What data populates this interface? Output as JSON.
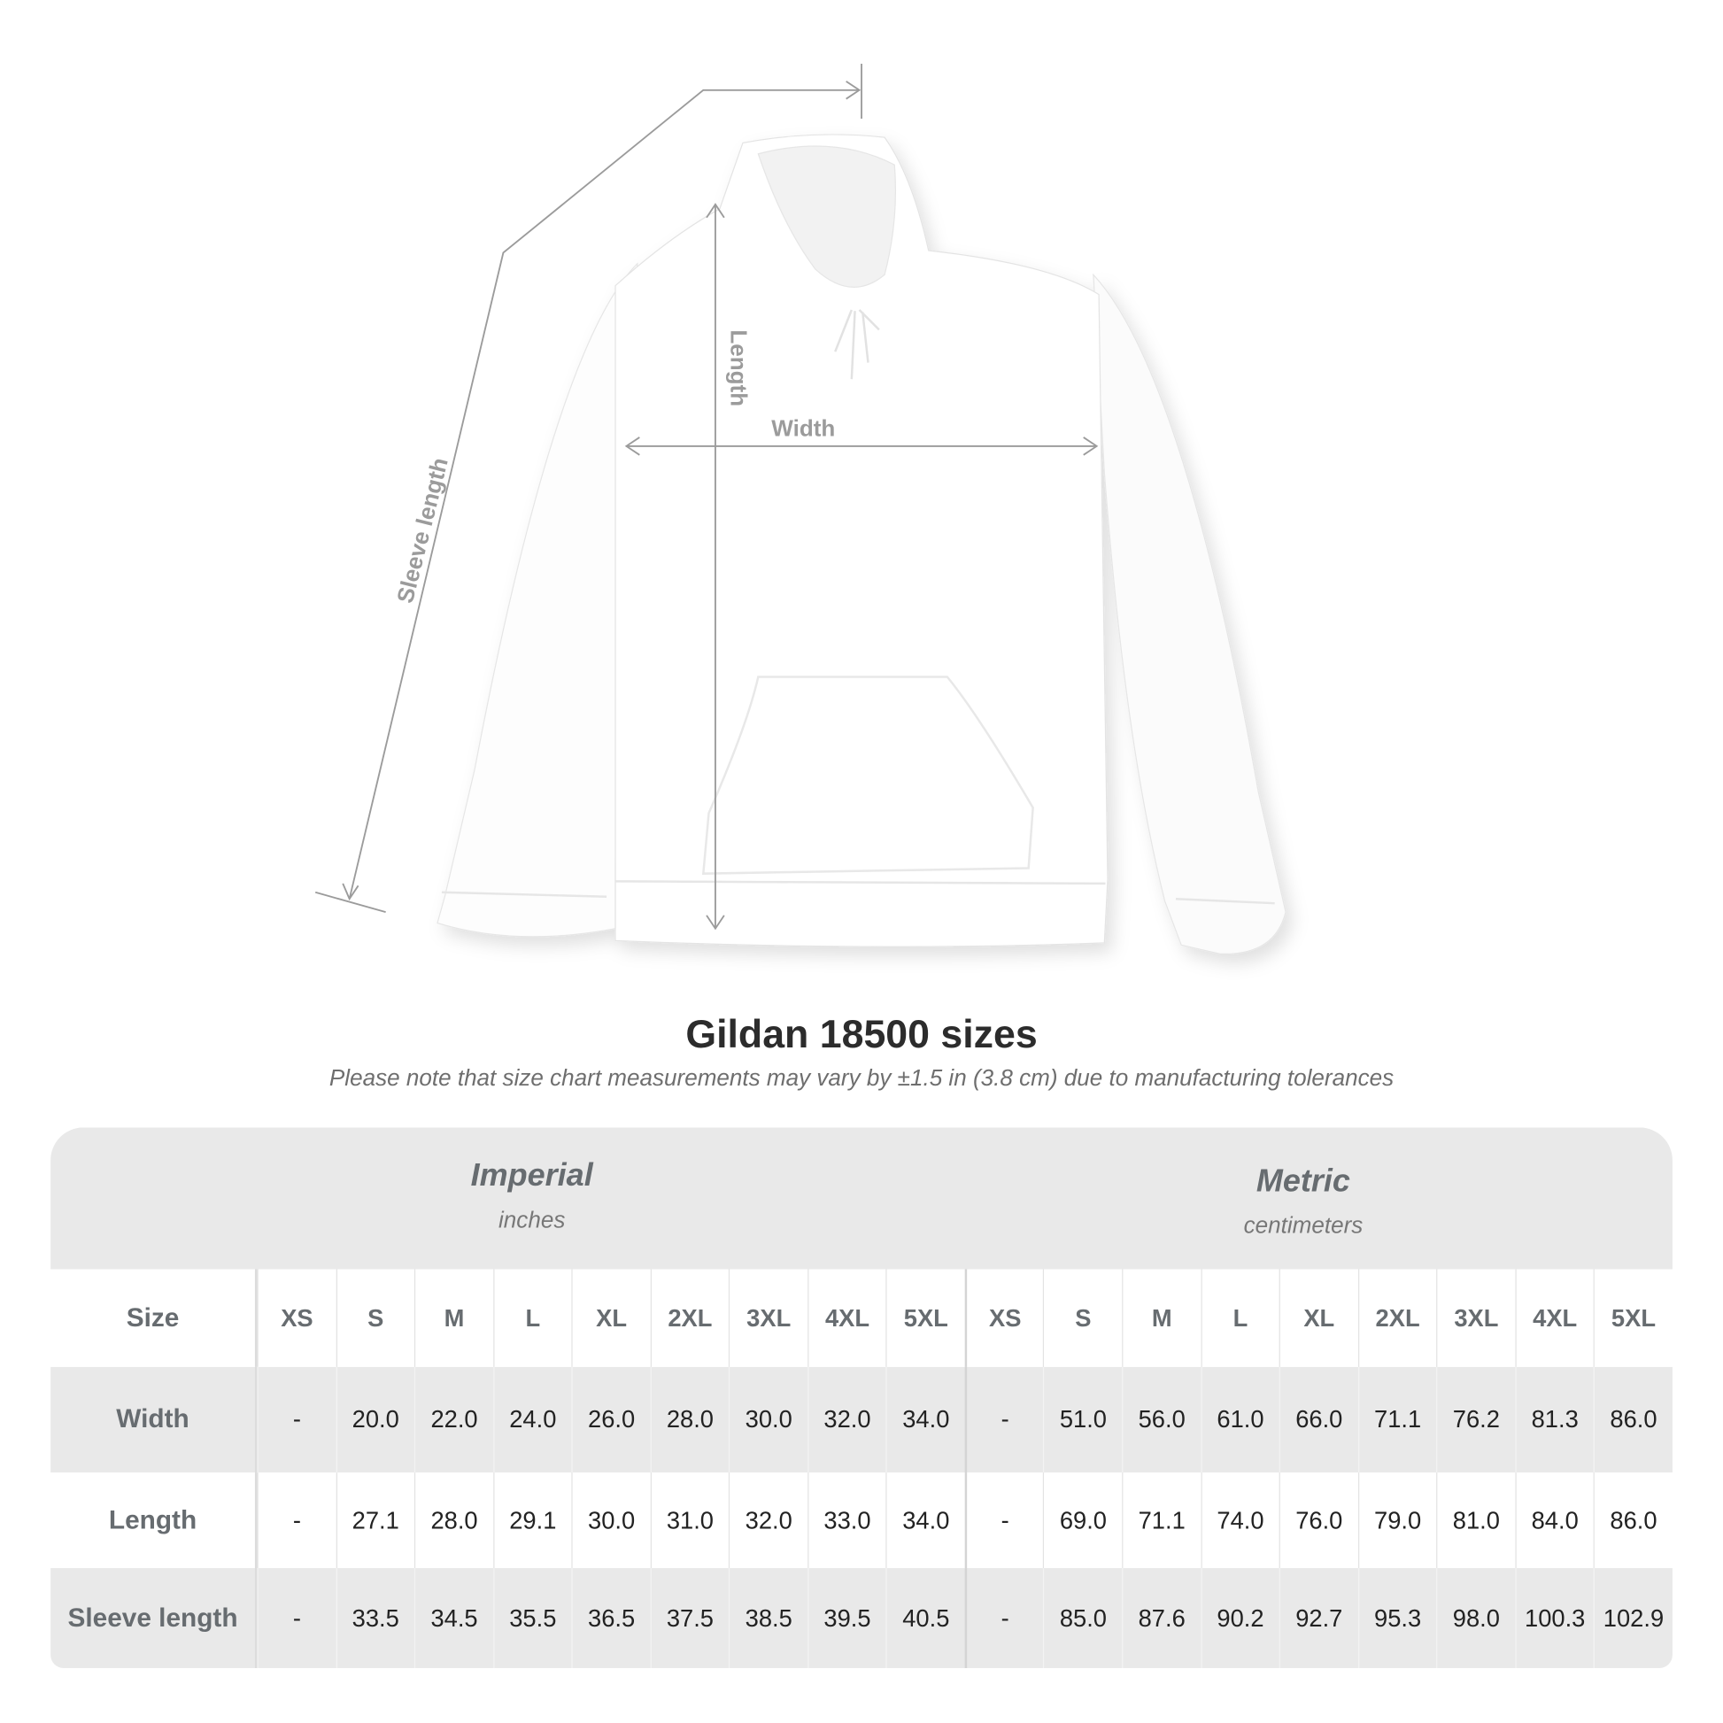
{
  "illustration": {
    "labels": {
      "length": "Length",
      "width": "Width",
      "sleeve": "Sleeve length"
    },
    "colors": {
      "measure_line": "#9b9b9b",
      "garment": "#ffffff"
    }
  },
  "title": "Gildan 18500 sizes",
  "subtitle": "Please note that size chart measurements may vary by ±1.5 in (3.8 cm) due to manufacturing tolerances",
  "table": {
    "imperial": {
      "name": "Imperial",
      "unit": "inches"
    },
    "metric": {
      "name": "Metric",
      "unit": "centimeters"
    },
    "size_label": "Size",
    "sizes": [
      "XS",
      "S",
      "M",
      "L",
      "XL",
      "2XL",
      "3XL",
      "4XL",
      "5XL"
    ],
    "rows": [
      {
        "label": "Width",
        "imperial": [
          "-",
          "20.0",
          "22.0",
          "24.0",
          "26.0",
          "28.0",
          "30.0",
          "32.0",
          "34.0"
        ],
        "metric": [
          "-",
          "51.0",
          "56.0",
          "61.0",
          "66.0",
          "71.1",
          "76.2",
          "81.3",
          "86.0"
        ]
      },
      {
        "label": "Length",
        "imperial": [
          "-",
          "27.1",
          "28.0",
          "29.1",
          "30.0",
          "31.0",
          "32.0",
          "33.0",
          "34.0"
        ],
        "metric": [
          "-",
          "69.0",
          "71.1",
          "74.0",
          "76.0",
          "79.0",
          "81.0",
          "84.0",
          "86.0"
        ]
      },
      {
        "label": "Sleeve length",
        "imperial": [
          "-",
          "33.5",
          "34.5",
          "35.5",
          "36.5",
          "37.5",
          "38.5",
          "39.5",
          "40.5"
        ],
        "metric": [
          "-",
          "85.0",
          "87.6",
          "90.2",
          "92.7",
          "95.3",
          "98.0",
          "100.3",
          "102.9"
        ]
      }
    ],
    "colors": {
      "band": "#e9e9e9",
      "label_text": "#676c70",
      "value_text": "#222222"
    }
  }
}
